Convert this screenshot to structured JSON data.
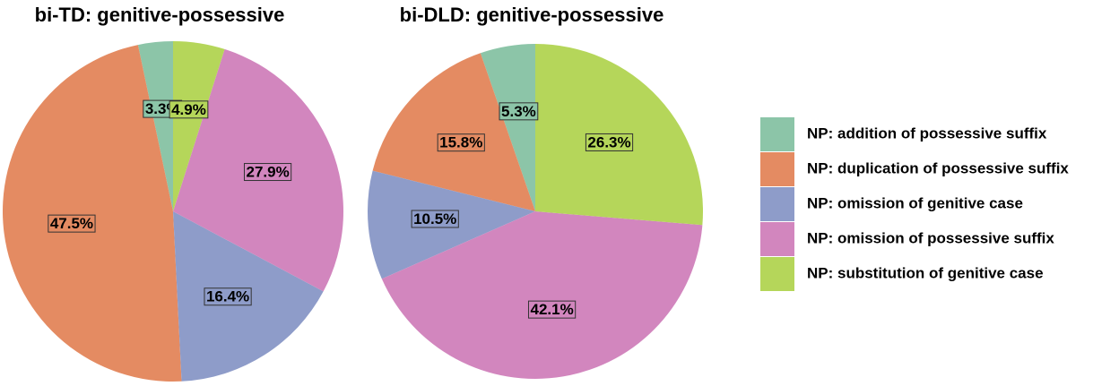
{
  "chart_data": [
    {
      "type": "pie",
      "title": "bi-TD: genitive-possessive",
      "categories": [
        "NP: addition of possessive suffix",
        "NP: duplication of possessive suffix",
        "NP: omission of genitive case",
        "NP: omission of possessive suffix",
        "NP: substitution of genitive case"
      ],
      "colors": [
        "#8cc5a8",
        "#e48b62",
        "#8e9cc9",
        "#d286be",
        "#b5d65a"
      ],
      "values": [
        3.3,
        47.5,
        16.4,
        27.9,
        4.9
      ],
      "value_labels": [
        "3.3%",
        "47.5%",
        "16.4%",
        "27.9%",
        "4.9%"
      ],
      "legend": "right"
    },
    {
      "type": "pie",
      "title": "bi-DLD: genitive-possessive",
      "values": [
        5.3,
        15.8,
        10.5,
        42.1,
        26.3
      ],
      "value_labels": [
        "5.3%",
        "15.8%",
        "10.5%",
        "42.1%",
        "26.3%"
      ]
    }
  ]
}
